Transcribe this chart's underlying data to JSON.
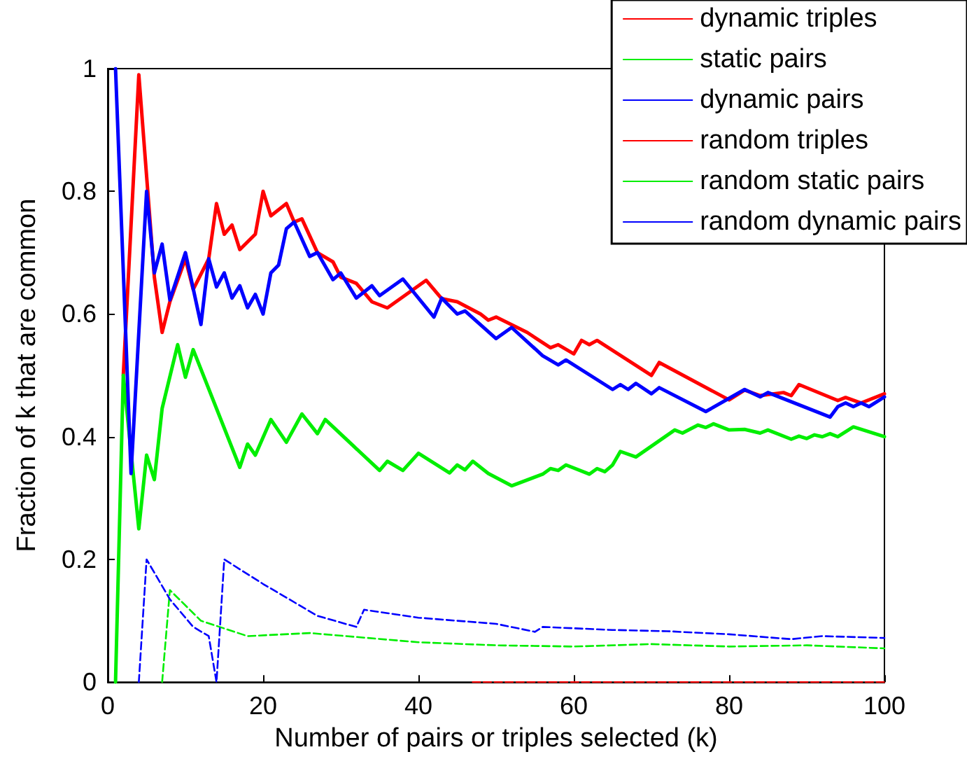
{
  "chart_data": {
    "type": "line",
    "xlabel": "Number of pairs or triples selected (k)",
    "ylabel": "Fraction of k that are common",
    "xlim": [
      0,
      100
    ],
    "xticks": [
      0,
      20,
      40,
      60,
      80,
      100
    ],
    "ylim": [
      0,
      1
    ],
    "yticks": [
      0,
      0.2,
      0.4,
      0.6,
      0.8,
      1
    ],
    "grid": false,
    "legend": "top right",
    "marker": "none",
    "series": [
      {
        "name": "dynamic triples",
        "color": "#ff0000",
        "line_style": "solid",
        "x": [
          2,
          4,
          6,
          7,
          8,
          10,
          11,
          13,
          14,
          15,
          16,
          17,
          19,
          20,
          21,
          23,
          24,
          25,
          27,
          29,
          30,
          32,
          34,
          36,
          41,
          43,
          45,
          48,
          49,
          50,
          54,
          57,
          58,
          60,
          61,
          62,
          63,
          70,
          71,
          80,
          82,
          84,
          87,
          88,
          89,
          94,
          95,
          97,
          100
        ],
        "values": [
          0.5,
          0.99,
          0.66,
          0.57,
          0.62,
          0.69,
          0.64,
          0.69,
          0.78,
          0.73,
          0.745,
          0.705,
          0.73,
          0.8,
          0.76,
          0.78,
          0.75,
          0.755,
          0.7,
          0.685,
          0.66,
          0.65,
          0.62,
          0.61,
          0.655,
          0.625,
          0.62,
          0.6,
          0.59,
          0.595,
          0.57,
          0.545,
          0.55,
          0.535,
          0.557,
          0.55,
          0.557,
          0.5,
          0.521,
          0.46,
          0.476,
          0.467,
          0.472,
          0.467,
          0.485,
          0.459,
          0.464,
          0.455,
          0.47
        ]
      },
      {
        "name": "static pairs",
        "color": "#00ee00",
        "line_style": "solid",
        "x": [
          1,
          2,
          4,
          5,
          6,
          7,
          9,
          10,
          11,
          17,
          18,
          19,
          21,
          23,
          25,
          27,
          28,
          35,
          36,
          38,
          40,
          44,
          45,
          46,
          47,
          49,
          52,
          56,
          57,
          58,
          59,
          62,
          63,
          64,
          65,
          66,
          68,
          73,
          74,
          76,
          77,
          78,
          80,
          82,
          84,
          85,
          88,
          89,
          90,
          91,
          92,
          93,
          94,
          96,
          100
        ],
        "values": [
          0,
          0.5,
          0.25,
          0.37,
          0.33,
          0.446,
          0.55,
          0.497,
          0.542,
          0.35,
          0.388,
          0.37,
          0.428,
          0.391,
          0.437,
          0.405,
          0.428,
          0.345,
          0.36,
          0.345,
          0.373,
          0.341,
          0.354,
          0.346,
          0.36,
          0.34,
          0.32,
          0.339,
          0.348,
          0.345,
          0.354,
          0.339,
          0.348,
          0.343,
          0.354,
          0.376,
          0.367,
          0.411,
          0.406,
          0.419,
          0.415,
          0.421,
          0.411,
          0.412,
          0.406,
          0.411,
          0.396,
          0.401,
          0.397,
          0.403,
          0.4,
          0.405,
          0.4,
          0.416,
          0.4
        ]
      },
      {
        "name": "dynamic pairs",
        "color": "#0000ff",
        "line_style": "solid",
        "x": [
          1,
          3,
          5,
          6,
          7,
          8,
          10,
          12,
          13,
          14,
          15,
          16,
          17,
          18,
          19,
          20,
          21,
          22,
          23,
          24,
          26,
          27,
          29,
          30,
          32,
          34,
          35,
          38,
          42,
          43,
          45,
          46,
          50,
          52,
          56,
          58,
          59,
          65,
          66,
          67,
          68,
          70,
          71,
          77,
          82,
          84,
          85,
          93,
          94,
          95,
          96,
          97,
          98,
          100
        ],
        "values": [
          1,
          0.34,
          0.8,
          0.667,
          0.714,
          0.623,
          0.7,
          0.583,
          0.69,
          0.644,
          0.667,
          0.626,
          0.646,
          0.61,
          0.632,
          0.6,
          0.667,
          0.68,
          0.739,
          0.75,
          0.694,
          0.7,
          0.656,
          0.667,
          0.626,
          0.646,
          0.63,
          0.657,
          0.595,
          0.626,
          0.6,
          0.605,
          0.56,
          0.578,
          0.532,
          0.517,
          0.525,
          0.477,
          0.485,
          0.477,
          0.487,
          0.47,
          0.48,
          0.441,
          0.477,
          0.465,
          0.472,
          0.432,
          0.449,
          0.455,
          0.449,
          0.455,
          0.449,
          0.465
        ]
      },
      {
        "name": "random triples",
        "color": "#ff0000",
        "line_style": "dashed",
        "x": [
          47,
          60,
          70,
          80,
          90,
          100
        ],
        "values": [
          0,
          0,
          0,
          0,
          0,
          0
        ]
      },
      {
        "name": "random static pairs",
        "color": "#00ee00",
        "line_style": "dashed",
        "x": [
          7,
          8,
          12,
          18,
          26,
          40,
          50,
          60,
          70,
          80,
          90,
          100
        ],
        "values": [
          0,
          0.15,
          0.1,
          0.075,
          0.08,
          0.065,
          0.06,
          0.058,
          0.062,
          0.058,
          0.06,
          0.055
        ]
      },
      {
        "name": "random dynamic pairs",
        "color": "#0000ff",
        "line_style": "dashed",
        "x": [
          4,
          5,
          8,
          11,
          13,
          14,
          15,
          20,
          27,
          32,
          33,
          40,
          50,
          55,
          56,
          65,
          72,
          80,
          88,
          92,
          100
        ],
        "values": [
          0,
          0.2,
          0.135,
          0.09,
          0.075,
          0,
          0.2,
          0.16,
          0.108,
          0.09,
          0.118,
          0.105,
          0.095,
          0.082,
          0.09,
          0.085,
          0.083,
          0.078,
          0.07,
          0.075,
          0.072
        ]
      }
    ]
  }
}
